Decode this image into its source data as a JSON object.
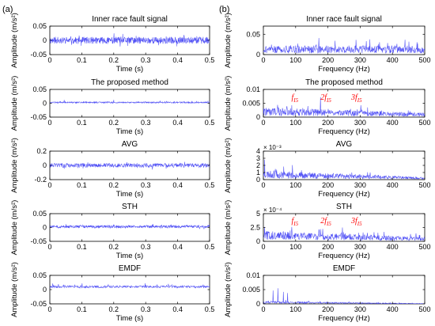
{
  "figure": {
    "panel_labels": [
      "(a)",
      "(b)"
    ],
    "colors": {
      "signal": "#4f4ff5",
      "annotation": "#ff0000",
      "axes": "#000000"
    }
  },
  "chart_data": [
    {
      "type": "line",
      "column": "a",
      "row": 0,
      "title": "Inner race fault signal",
      "xlabel": "Time (s)",
      "ylabel": "Amplitude (m/s²)",
      "xlim": [
        0,
        0.5
      ],
      "ylim": [
        -0.05,
        0.05
      ],
      "xticks": [
        0,
        0.1,
        0.2,
        0.3,
        0.4,
        0.5
      ],
      "xtick_labels": [
        "0",
        "0.1",
        "0.2",
        "0.3",
        "0.4",
        "0.5"
      ],
      "yticks": [
        -0.05,
        0,
        0.05
      ],
      "ytick_labels": [
        "-0.05",
        "0",
        "0.05"
      ],
      "multiplier": "",
      "annotations": [],
      "series": [
        {
          "kind": "noise",
          "base": 0.0,
          "amp": 0.012,
          "sym": true,
          "n": 600,
          "seed": 11,
          "peaks": []
        }
      ]
    },
    {
      "type": "line",
      "column": "b",
      "row": 0,
      "title": "Inner race fault signal",
      "xlabel": "Frequency (Hz)",
      "ylabel": "Amplitude (m/s²)",
      "xlim": [
        0,
        500
      ],
      "ylim": [
        0,
        0.07
      ],
      "xticks": [
        0,
        100,
        200,
        300,
        400,
        500
      ],
      "xtick_labels": [
        "0",
        "100",
        "200",
        "300",
        "400",
        "500"
      ],
      "yticks": [
        0,
        0.05
      ],
      "ytick_labels": [
        "0",
        "0.05"
      ],
      "multiplier": "",
      "annotations": [],
      "series": [
        {
          "kind": "spectrum",
          "level": 0.022,
          "decay": 0.0,
          "spike": 0.45,
          "n": 500,
          "seed": 21,
          "peaks": []
        }
      ]
    },
    {
      "type": "line",
      "column": "a",
      "row": 1,
      "title": "The proposed method",
      "xlabel": "Time (s)",
      "ylabel": "Amplitude (m/s²)",
      "xlim": [
        0,
        0.5
      ],
      "ylim": [
        -0.05,
        0.05
      ],
      "xticks": [
        0,
        0.1,
        0.2,
        0.3,
        0.4,
        0.5
      ],
      "xtick_labels": [
        "0",
        "0.1",
        "0.2",
        "0.3",
        "0.4",
        "0.5"
      ],
      "yticks": [
        -0.05,
        0,
        0.05
      ],
      "ytick_labels": [
        "-0.05",
        "0",
        "0.05"
      ],
      "multiplier": "",
      "annotations": [],
      "series": [
        {
          "kind": "noise",
          "base": 0.003,
          "amp": 0.0025,
          "sym": true,
          "n": 600,
          "seed": 12,
          "peaks": [
            [
              0.045,
              0.012
            ],
            [
              0.2,
              0.012
            ],
            [
              0.345,
              0.009
            ],
            [
              0.445,
              0.008
            ]
          ]
        }
      ]
    },
    {
      "type": "line",
      "column": "b",
      "row": 1,
      "title": "The proposed method",
      "xlabel": "Frequency (Hz)",
      "ylabel": "Amplitude (m/s²)",
      "xlim": [
        0,
        500
      ],
      "ylim": [
        0,
        0.01
      ],
      "xticks": [
        0,
        100,
        200,
        300,
        400,
        500
      ],
      "xtick_labels": [
        "0",
        "100",
        "200",
        "300",
        "400",
        "500"
      ],
      "yticks": [
        0,
        0.005,
        0.01
      ],
      "ytick_labels": [
        "0",
        "0.005",
        "0.01"
      ],
      "multiplier": "",
      "annotations": [
        {
          "coef": "",
          "x": 87,
          "y": 0.0063
        },
        {
          "coef": "2",
          "x": 177,
          "y": 0.0063
        },
        {
          "coef": "3",
          "x": 272,
          "y": 0.0063
        }
      ],
      "series": [
        {
          "kind": "spectrum",
          "level": 0.0035,
          "decay": 0.55,
          "spike": 0.5,
          "n": 500,
          "seed": 22,
          "peaks": [
            [
              88,
              0.0043
            ],
            [
              177,
              0.0072
            ],
            [
              270,
              0.0028
            ]
          ]
        }
      ]
    },
    {
      "type": "line",
      "column": "a",
      "row": 2,
      "title": "AVG",
      "xlabel": "Time (s)",
      "ylabel": "Amplitude (m/s²)",
      "xlim": [
        0,
        0.5
      ],
      "ylim": [
        -0.2,
        0.2
      ],
      "xticks": [
        0,
        0.1,
        0.2,
        0.3,
        0.4,
        0.5
      ],
      "xtick_labels": [
        "0",
        "0.1",
        "0.2",
        "0.3",
        "0.4",
        "0.5"
      ],
      "yticks": [
        -0.2,
        0,
        0.2
      ],
      "ytick_labels": [
        "-0.2",
        "0",
        "0.2"
      ],
      "multiplier": "",
      "annotations": [],
      "series": [
        {
          "kind": "noise",
          "base": 0.0,
          "amp": 0.03,
          "sym": true,
          "n": 500,
          "seed": 13,
          "peaks": []
        }
      ]
    },
    {
      "type": "line",
      "column": "b",
      "row": 2,
      "title": "AVG",
      "xlabel": "Frequency (Hz)",
      "ylabel": "Amplitude (m/s²)",
      "xlim": [
        0,
        500
      ],
      "ylim": [
        0,
        0.004
      ],
      "xticks": [
        0,
        100,
        200,
        300,
        400,
        500
      ],
      "xtick_labels": [
        "0",
        "100",
        "200",
        "300",
        "400",
        "500"
      ],
      "yticks": [
        0,
        0.001,
        0.002,
        0.003,
        0.004
      ],
      "ytick_labels": [
        "0",
        "1",
        "2",
        "3",
        "4"
      ],
      "multiplier": "× 10⁻³",
      "annotations": [],
      "series": [
        {
          "kind": "spectrum",
          "level": 0.0013,
          "decay": 0.75,
          "spike": 0.4,
          "n": 500,
          "seed": 23,
          "peaks": [
            [
              4,
              0.0028
            ]
          ]
        }
      ]
    },
    {
      "type": "line",
      "column": "a",
      "row": 3,
      "title": "STH",
      "xlabel": "Time (s)",
      "ylabel": "Amplitude (m/s²)",
      "xlim": [
        0,
        0.5
      ],
      "ylim": [
        -0.05,
        0.05
      ],
      "xticks": [
        0,
        0.1,
        0.2,
        0.3,
        0.4,
        0.5
      ],
      "xtick_labels": [
        "0",
        "0.1",
        "0.2",
        "0.3",
        "0.4",
        "0.5"
      ],
      "yticks": [
        -0.05,
        0,
        0.05
      ],
      "ytick_labels": [
        "-0.05",
        "0",
        "0.05"
      ],
      "multiplier": "",
      "annotations": [],
      "series": [
        {
          "kind": "noise",
          "base": 0.003,
          "amp": 0.005,
          "sym": true,
          "n": 600,
          "seed": 14,
          "peaks": [
            [
              0.05,
              0.012
            ],
            [
              0.2,
              0.011
            ],
            [
              0.35,
              0.01
            ]
          ]
        }
      ]
    },
    {
      "type": "line",
      "column": "b",
      "row": 3,
      "title": "STH",
      "xlabel": "Frequency (Hz)",
      "ylabel": "Amplitude (m/s²)",
      "xlim": [
        0,
        500
      ],
      "ylim": [
        0,
        0.0005
      ],
      "xticks": [
        0,
        100,
        200,
        300,
        400,
        500
      ],
      "xtick_labels": [
        "0",
        "100",
        "200",
        "300",
        "400",
        "500"
      ],
      "yticks": [
        0,
        0.00025,
        0.0005
      ],
      "ytick_labels": [
        "0",
        "2.5",
        "5"
      ],
      "multiplier": "× 10⁻⁴",
      "annotations": [
        {
          "coef": "",
          "x": 87,
          "y": 0.00033
        },
        {
          "coef": "2",
          "x": 177,
          "y": 0.00033
        },
        {
          "coef": "3",
          "x": 272,
          "y": 0.00033
        }
      ],
      "series": [
        {
          "kind": "spectrum",
          "level": 0.00019,
          "decay": 0.6,
          "spike": 0.5,
          "n": 500,
          "seed": 24,
          "peaks": [
            [
              88,
              0.00026
            ],
            [
              177,
              0.00022
            ],
            [
              270,
              0.00013
            ]
          ]
        }
      ]
    },
    {
      "type": "line",
      "column": "a",
      "row": 4,
      "title": "EMDF",
      "xlabel": "Time (s)",
      "ylabel": "Amplitude (m/s²)",
      "xlim": [
        0,
        0.5
      ],
      "ylim": [
        -0.05,
        0.05
      ],
      "xticks": [
        0,
        0.1,
        0.2,
        0.3,
        0.4,
        0.5
      ],
      "xtick_labels": [
        "0",
        "0.1",
        "0.2",
        "0.3",
        "0.4",
        "0.5"
      ],
      "yticks": [
        -0.05,
        0,
        0.05
      ],
      "ytick_labels": [
        "-0.05",
        "0",
        "0.05"
      ],
      "multiplier": "",
      "annotations": [],
      "series": [
        {
          "kind": "noise",
          "base": 0.01,
          "amp": 0.008,
          "sym": false,
          "n": 500,
          "seed": 15,
          "peaks": [
            [
              0.047,
              0.015
            ],
            [
              0.097,
              0.014
            ],
            [
              0.148,
              0.013
            ],
            [
              0.198,
              0.014
            ],
            [
              0.246,
              0.012
            ],
            [
              0.3,
              0.012
            ],
            [
              0.347,
              0.013
            ],
            [
              0.396,
              0.012
            ],
            [
              0.45,
              0.012
            ]
          ]
        }
      ]
    },
    {
      "type": "line",
      "column": "b",
      "row": 4,
      "title": "EMDF",
      "xlabel": "Frequency (Hz)",
      "ylabel": "Amplitude (m/s²)",
      "xlim": [
        0,
        500
      ],
      "ylim": [
        0,
        0.01
      ],
      "xticks": [
        0,
        100,
        200,
        300,
        400,
        500
      ],
      "xtick_labels": [
        "0",
        "100",
        "200",
        "300",
        "400",
        "500"
      ],
      "yticks": [
        0,
        0.005,
        0.01
      ],
      "ytick_labels": [
        "0",
        "0.005",
        "0.01"
      ],
      "multiplier": "",
      "annotations": [],
      "series": [
        {
          "kind": "spectrum",
          "level": 0.0009,
          "decay": 0.85,
          "spike": 0.7,
          "n": 500,
          "seed": 25,
          "peaks": [
            [
              30,
              0.0047
            ],
            [
              45,
              0.0055
            ],
            [
              62,
              0.0042
            ],
            [
              75,
              0.0038
            ]
          ]
        }
      ]
    }
  ]
}
